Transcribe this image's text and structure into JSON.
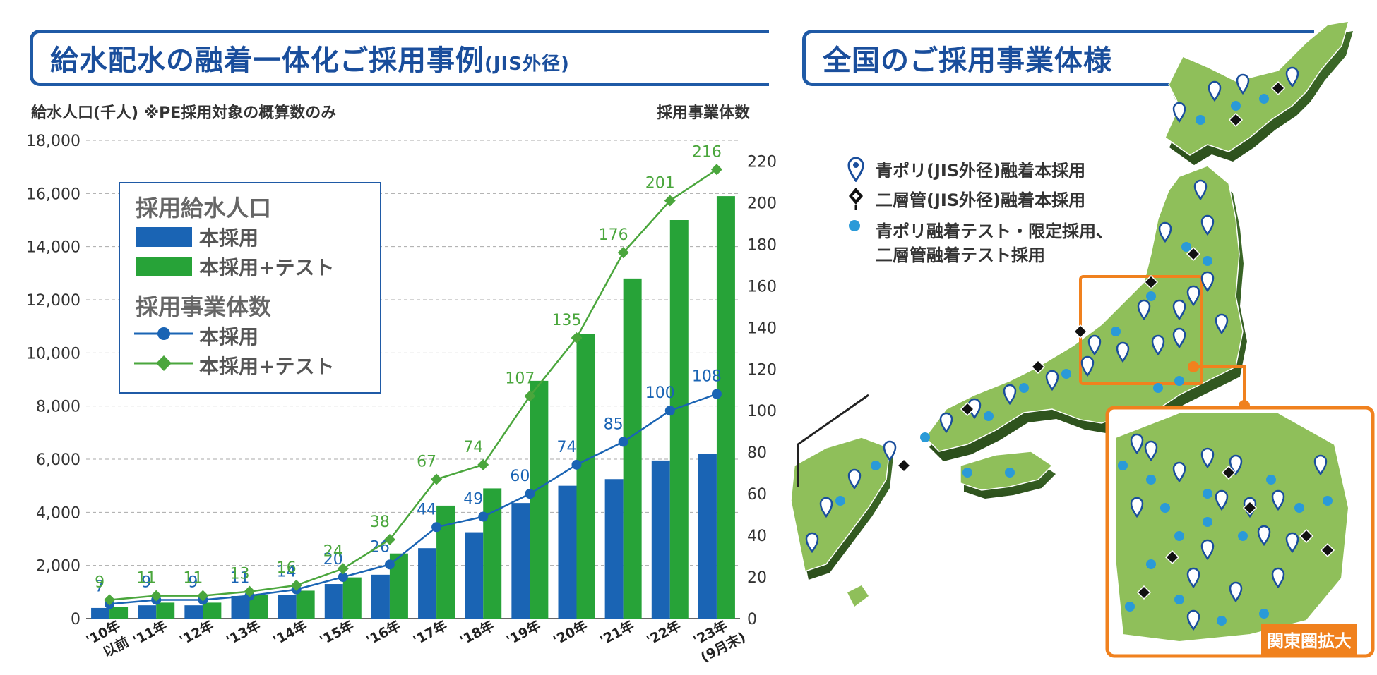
{
  "left_title": {
    "main": "給水配水の融着一体化ご採用事例",
    "sub": "(JIS外径)"
  },
  "right_title": "全国のご採用事業体様",
  "left_axis_caption": "給水人口(千人) ※PE採用対象の概算数のみ",
  "right_axis_caption": "採用事業体数",
  "legend": {
    "group1_title": "採用給水人口",
    "group1_items": [
      "本採用",
      "本採用+テスト"
    ],
    "group2_title": "採用事業体数",
    "group2_items": [
      "本採用",
      "本採用+テスト"
    ]
  },
  "colors": {
    "blue": "#1a64b4",
    "green": "#27a338",
    "line_blue": "#1a64b4",
    "line_green": "#4aa63c",
    "title_blue": "#1f5aa6",
    "orange": "#f0811e",
    "map_green": "#8fbf5a"
  },
  "chart_data": {
    "type": "bar",
    "categories": [
      "'10年以前",
      "'11年",
      "'12年",
      "'13年",
      "'14年",
      "'15年",
      "'16年",
      "'17年",
      "'18年",
      "'19年",
      "'20年",
      "'21年",
      "'22年",
      "'23年(9月末)"
    ],
    "category_lines": [
      [
        "'10年",
        "以前"
      ],
      [
        "'11年"
      ],
      [
        "'12年"
      ],
      [
        "'13年"
      ],
      [
        "'14年"
      ],
      [
        "'15年"
      ],
      [
        "'16年"
      ],
      [
        "'17年"
      ],
      [
        "'18年"
      ],
      [
        "'19年"
      ],
      [
        "'20年"
      ],
      [
        "'21年"
      ],
      [
        "'22年"
      ],
      [
        "'23年",
        "(9月末)"
      ]
    ],
    "series": [
      {
        "name": "採用給水人口 本採用",
        "kind": "bar",
        "axis": "left",
        "color": "#1a64b4",
        "values": [
          400,
          500,
          500,
          850,
          900,
          1300,
          1650,
          2650,
          3250,
          4350,
          5000,
          5250,
          5950,
          6200
        ]
      },
      {
        "name": "採用給水人口 本採用+テスト",
        "kind": "bar",
        "axis": "left",
        "color": "#27a338",
        "values": [
          450,
          600,
          600,
          900,
          1050,
          1550,
          2450,
          4250,
          4900,
          8950,
          10700,
          12800,
          15000,
          15900
        ]
      },
      {
        "name": "採用事業体数 本採用",
        "kind": "line",
        "axis": "right",
        "color": "#1a64b4",
        "values": [
          7,
          9,
          9,
          11,
          14,
          20,
          26,
          44,
          49,
          60,
          74,
          85,
          100,
          108
        ]
      },
      {
        "name": "採用事業体数 本採用+テスト",
        "kind": "line",
        "axis": "right",
        "color": "#4aa63c",
        "values": [
          9,
          11,
          11,
          13,
          16,
          24,
          38,
          67,
          74,
          107,
          135,
          176,
          201,
          216
        ]
      }
    ],
    "y_left": {
      "min": 0,
      "max": 18000,
      "ticks": [
        0,
        2000,
        4000,
        6000,
        8000,
        10000,
        12000,
        14000,
        16000,
        18000
      ],
      "tick_labels": [
        "0",
        "2,000",
        "4,000",
        "6,000",
        "8,000",
        "10,000",
        "12,000",
        "14,000",
        "16,000",
        "18,000"
      ]
    },
    "y_right": {
      "min": 0,
      "max": 230,
      "ticks": [
        0,
        20,
        40,
        60,
        80,
        100,
        120,
        140,
        160,
        180,
        200,
        220
      ],
      "tick_labels": [
        "0",
        "20",
        "40",
        "60",
        "80",
        "100",
        "120",
        "140",
        "160",
        "180",
        "200",
        "220"
      ]
    },
    "grid": true,
    "legend_position": "upper-left"
  },
  "map": {
    "legend": [
      {
        "icon": "blue-pin-icon",
        "label": "青ポリ(JIS外径)融着本採用"
      },
      {
        "icon": "black-diamond-pin-icon",
        "label": "二層管(JIS外径)融着本採用"
      },
      {
        "icon": "light-blue-dot-icon",
        "label": "青ポリ融着テスト・限定採用、",
        "label2": "二層管融着テスト採用"
      }
    ],
    "inset_label": "関東圏拡大"
  }
}
